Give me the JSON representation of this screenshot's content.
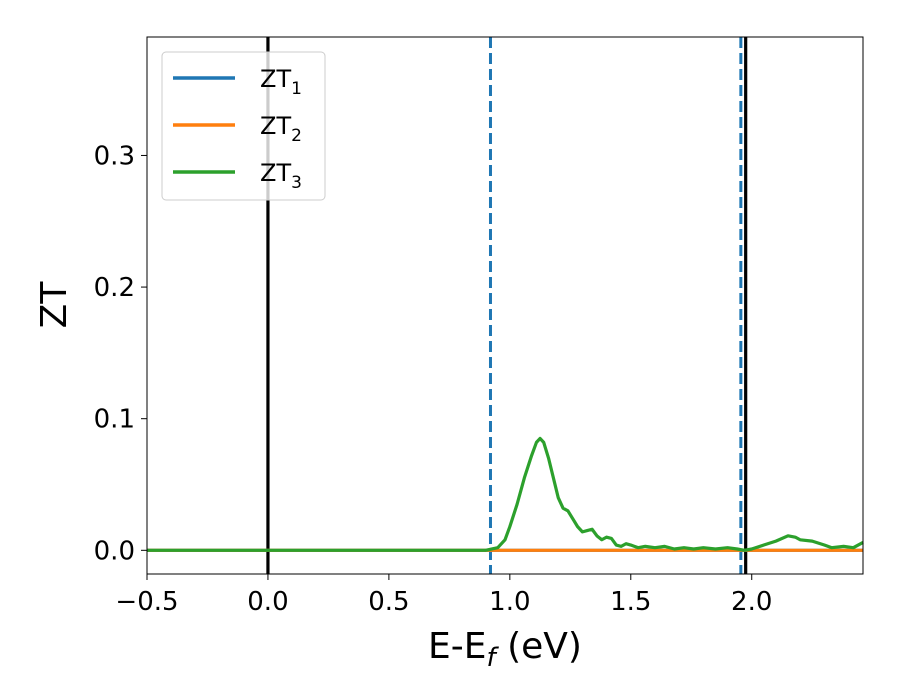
{
  "chart_data": {
    "type": "line",
    "title": "",
    "xlabel": {
      "main": "E-E",
      "sub": "f",
      "unit": " (eV)"
    },
    "ylabel": "ZT",
    "xlim": [
      -0.5,
      2.46
    ],
    "ylim": [
      -0.018,
      0.39
    ],
    "xticks": [
      -0.5,
      0.0,
      0.5,
      1.0,
      1.5,
      2.0
    ],
    "xtick_labels": [
      "−0.5",
      "0.0",
      "0.5",
      "1.0",
      "1.5",
      "2.0"
    ],
    "yticks": [
      0.0,
      0.1,
      0.2,
      0.3
    ],
    "ytick_labels": [
      "0.0",
      "0.1",
      "0.2",
      "0.3"
    ],
    "grid": false,
    "legend_position": "top-left",
    "series": [
      {
        "name": "ZT",
        "subscript": "1",
        "color": "#1f77b4",
        "points": [
          [
            -0.5,
            0
          ],
          [
            2.46,
            0
          ]
        ]
      },
      {
        "name": "ZT",
        "subscript": "2",
        "color": "#ff7f0e",
        "points": [
          [
            -0.5,
            0
          ],
          [
            2.46,
            0
          ]
        ]
      },
      {
        "name": "ZT",
        "subscript": "3",
        "color": "#2ca02c",
        "points": [
          [
            -0.5,
            0
          ],
          [
            0.9,
            0
          ],
          [
            0.95,
            0.002
          ],
          [
            0.98,
            0.008
          ],
          [
            1.0,
            0.018
          ],
          [
            1.03,
            0.035
          ],
          [
            1.06,
            0.055
          ],
          [
            1.09,
            0.072
          ],
          [
            1.11,
            0.082
          ],
          [
            1.125,
            0.085
          ],
          [
            1.14,
            0.082
          ],
          [
            1.16,
            0.07
          ],
          [
            1.18,
            0.055
          ],
          [
            1.2,
            0.04
          ],
          [
            1.22,
            0.032
          ],
          [
            1.24,
            0.03
          ],
          [
            1.26,
            0.024
          ],
          [
            1.28,
            0.018
          ],
          [
            1.3,
            0.014
          ],
          [
            1.32,
            0.015
          ],
          [
            1.34,
            0.016
          ],
          [
            1.36,
            0.011
          ],
          [
            1.38,
            0.008
          ],
          [
            1.4,
            0.01
          ],
          [
            1.42,
            0.009
          ],
          [
            1.44,
            0.004
          ],
          [
            1.46,
            0.003
          ],
          [
            1.48,
            0.005
          ],
          [
            1.5,
            0.004
          ],
          [
            1.53,
            0.002
          ],
          [
            1.56,
            0.003
          ],
          [
            1.6,
            0.002
          ],
          [
            1.64,
            0.003
          ],
          [
            1.68,
            0.001
          ],
          [
            1.72,
            0.002
          ],
          [
            1.76,
            0.001
          ],
          [
            1.8,
            0.002
          ],
          [
            1.85,
            0.001
          ],
          [
            1.9,
            0.002
          ],
          [
            1.94,
            0.001
          ],
          [
            1.97,
            0.0
          ],
          [
            2.0,
            0.001
          ],
          [
            2.05,
            0.004
          ],
          [
            2.1,
            0.007
          ],
          [
            2.15,
            0.011
          ],
          [
            2.18,
            0.01
          ],
          [
            2.2,
            0.008
          ],
          [
            2.25,
            0.007
          ],
          [
            2.3,
            0.004
          ],
          [
            2.33,
            0.002
          ],
          [
            2.38,
            0.003
          ],
          [
            2.42,
            0.002
          ],
          [
            2.44,
            0.004
          ],
          [
            2.46,
            0.006
          ]
        ]
      }
    ],
    "vlines": [
      {
        "x": 0.0,
        "style": "solid",
        "color": "#000000"
      },
      {
        "x": 0.92,
        "style": "dashed",
        "color": "#1f77b4"
      },
      {
        "x": 1.955,
        "style": "dashed",
        "color": "#1f77b4"
      },
      {
        "x": 1.975,
        "style": "solid",
        "color": "#000000"
      }
    ]
  }
}
